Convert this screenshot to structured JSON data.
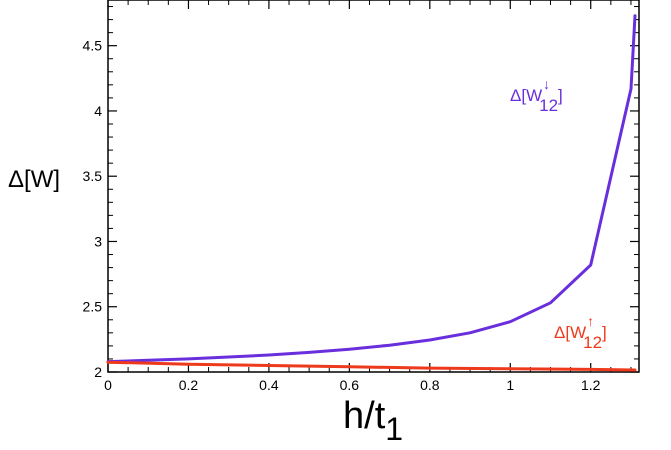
{
  "chart_data": {
    "type": "line",
    "xlabel": "h/t",
    "xlabel_sub": "1",
    "ylabel": "Δ[W]",
    "xlim": [
      0,
      1.32
    ],
    "ylim": [
      2,
      4.85
    ],
    "x_ticks": [
      "0",
      "0.2",
      "0.4",
      "0.6",
      "0.8",
      "1",
      "1.2"
    ],
    "x_tick_values": [
      0,
      0.2,
      0.4,
      0.6,
      0.8,
      1.0,
      1.2
    ],
    "y_ticks": [
      "2",
      "2.5",
      "3",
      "3.5",
      "4",
      "4.5"
    ],
    "y_tick_values": [
      2,
      2.5,
      3,
      3.5,
      4,
      4.5
    ],
    "grid": false,
    "series": [
      {
        "name": "Δ[W↓12]",
        "label_prefix": "Δ[W",
        "label_arrow": "↓",
        "label_sub": "12",
        "label_suffix": "]",
        "color": "#6a2fdc",
        "x": [
          0,
          0.1,
          0.2,
          0.3,
          0.4,
          0.5,
          0.6,
          0.7,
          0.8,
          0.9,
          1.0,
          1.1,
          1.2,
          1.3,
          1.31
        ],
        "y": [
          2.08,
          2.09,
          2.1,
          2.115,
          2.13,
          2.15,
          2.175,
          2.205,
          2.245,
          2.3,
          2.385,
          2.53,
          2.82,
          4.17,
          4.73
        ]
      },
      {
        "name": "Δ[W↑12]",
        "label_prefix": "Δ[W",
        "label_arrow": "↑",
        "label_sub": "12",
        "label_suffix": "]",
        "color": "#ee3a1c",
        "x": [
          0,
          0.2,
          0.4,
          0.6,
          0.8,
          1.0,
          1.2,
          1.31
        ],
        "y": [
          2.075,
          2.06,
          2.05,
          2.04,
          2.03,
          2.025,
          2.02,
          2.015
        ]
      }
    ]
  }
}
